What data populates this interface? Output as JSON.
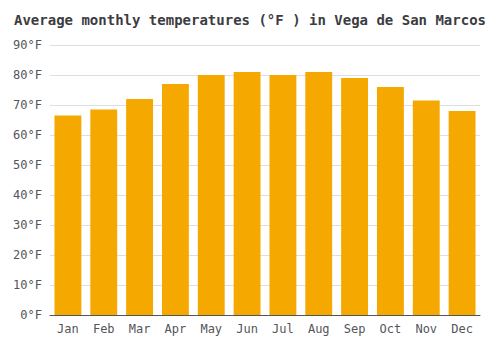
{
  "chart_data": {
    "type": "bar",
    "title": "Average monthly temperatures (°F ) in Vega de San Marcos",
    "categories": [
      "Jan",
      "Feb",
      "Mar",
      "Apr",
      "May",
      "Jun",
      "Jul",
      "Aug",
      "Sep",
      "Oct",
      "Nov",
      "Dec"
    ],
    "values": [
      66.5,
      68.5,
      72,
      77,
      80,
      81,
      80,
      81,
      79,
      76,
      71.5,
      68
    ],
    "color": "#F5A800",
    "ylim": [
      0,
      90
    ],
    "yticks": [
      {
        "value": 0,
        "label": "0°F"
      },
      {
        "value": 10,
        "label": "10°F"
      },
      {
        "value": 20,
        "label": "20°F"
      },
      {
        "value": 30,
        "label": "30°F"
      },
      {
        "value": 40,
        "label": "40°F"
      },
      {
        "value": 50,
        "label": "50°F"
      },
      {
        "value": 60,
        "label": "60°F"
      },
      {
        "value": 70,
        "label": "70°F"
      },
      {
        "value": 80,
        "label": "80°F"
      },
      {
        "value": 90,
        "label": "90°F"
      }
    ],
    "grid": true
  }
}
